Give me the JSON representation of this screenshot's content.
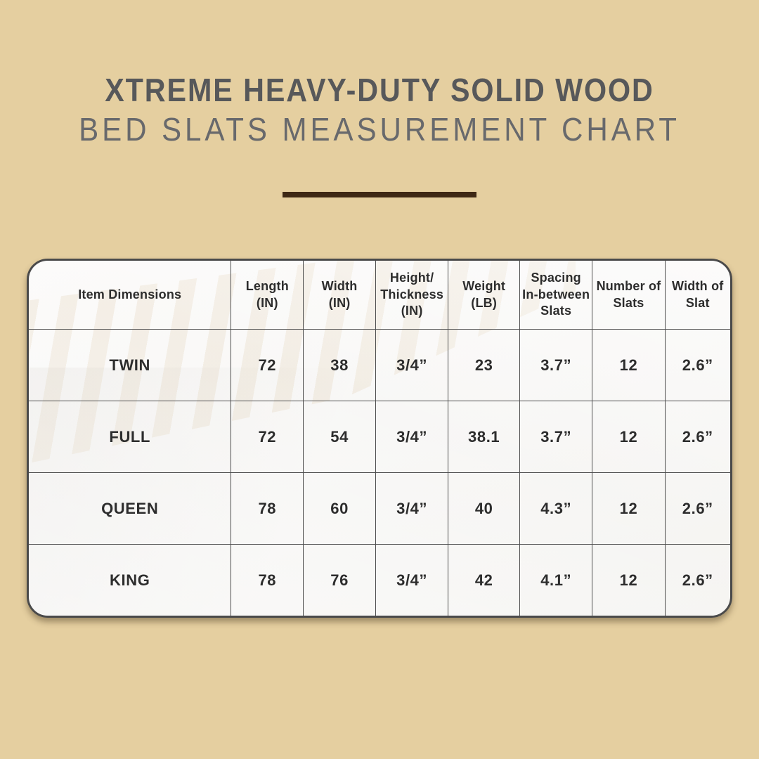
{
  "page": {
    "background_color": "#e5cfa0"
  },
  "title": {
    "line1": "XTREME HEAVY-DUTY SOLID WOOD",
    "line2": "BED SLATS MEASUREMENT CHART",
    "line1_color": "#57585a",
    "line2_color": "#68696c",
    "divider_color": "#3e2815"
  },
  "table": {
    "border_color": "#4a4a4a",
    "grid_line_color": "#4e4e4e",
    "text_color": "#2d2d2d",
    "background_color": "#f7f6f4",
    "watermark": "faint-bed-frame-with-wood-slats-photo"
  },
  "chart_data": {
    "type": "table",
    "title": "XTREME HEAVY-DUTY SOLID WOOD BED SLATS MEASUREMENT CHART",
    "columns": [
      "Item Dimensions",
      "Length\n(IN)",
      "Width\n(IN)",
      "Height/\nThickness\n(IN)",
      "Weight\n(LB)",
      "Spacing\nIn-between\nSlats",
      "Number of\nSlats",
      "Width of\nSlat"
    ],
    "rows": [
      [
        "TWIN",
        "72",
        "38",
        "3/4”",
        "23",
        "3.7”",
        "12",
        "2.6”"
      ],
      [
        "FULL",
        "72",
        "54",
        "3/4”",
        "38.1",
        "3.7”",
        "12",
        "2.6”"
      ],
      [
        "QUEEN",
        "78",
        "60",
        "3/4”",
        "40",
        "4.3”",
        "12",
        "2.6”"
      ],
      [
        "KING",
        "78",
        "76",
        "3/4”",
        "42",
        "4.1”",
        "12",
        "2.6”"
      ]
    ]
  }
}
